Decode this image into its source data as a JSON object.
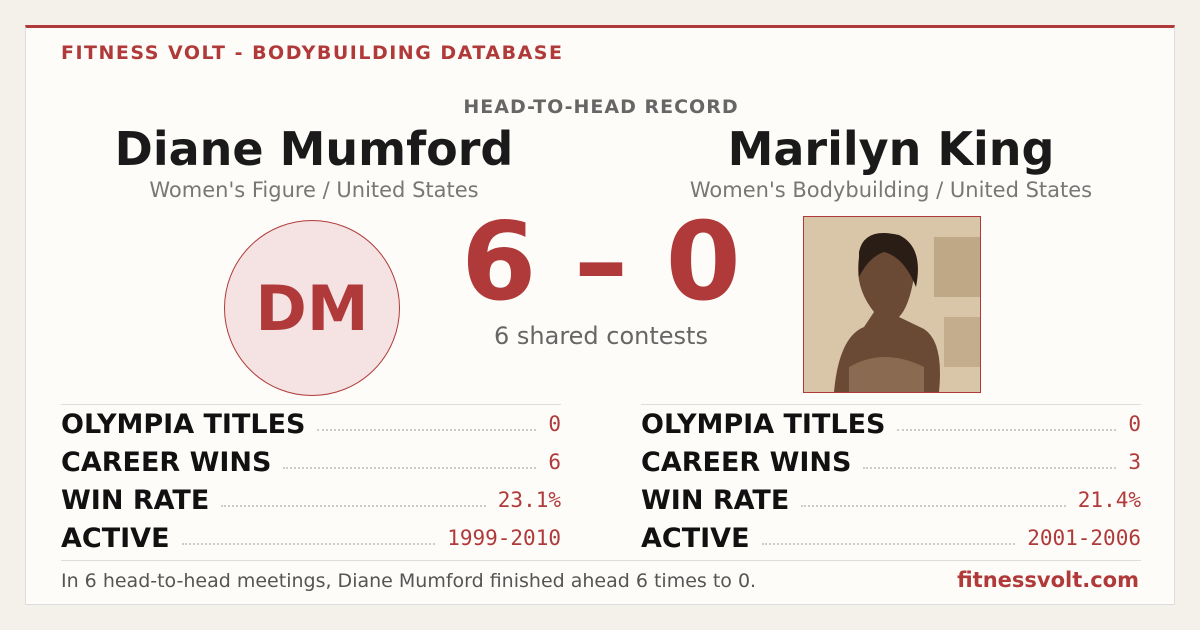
{
  "header": {
    "brand": "FITNESS VOLT - BODYBUILDING DATABASE",
    "section": "HEAD-TO-HEAD RECORD"
  },
  "left": {
    "name": "Diane Mumford",
    "division": "Women's Figure / United States",
    "initials": "DM",
    "stats": [
      {
        "label": "OLYMPIA TITLES",
        "value": "0"
      },
      {
        "label": "CAREER WINS",
        "value": "6"
      },
      {
        "label": "WIN RATE",
        "value": "23.1%"
      },
      {
        "label": "ACTIVE",
        "value": "1999-2010"
      }
    ]
  },
  "right": {
    "name": "Marilyn King",
    "division": "Women's Bodybuilding / United States",
    "stats": [
      {
        "label": "OLYMPIA TITLES",
        "value": "0"
      },
      {
        "label": "CAREER WINS",
        "value": "3"
      },
      {
        "label": "WIN RATE",
        "value": "21.4%"
      },
      {
        "label": "ACTIVE",
        "value": "2001-2006"
      }
    ]
  },
  "score": "6 – 0",
  "shared": "6 shared contests",
  "footer": {
    "summary": "In 6 head-to-head meetings, Diane Mumford finished ahead 6 times to 0.",
    "site": "fitnessvolt.com"
  }
}
